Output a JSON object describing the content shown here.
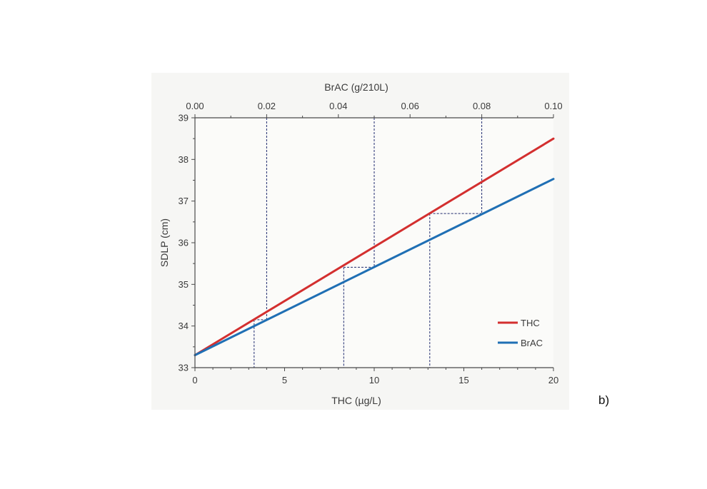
{
  "panel_label": "b)",
  "colors": {
    "thc": "#d32f2f",
    "brac": "#1f6fb4"
  },
  "chart_data": {
    "type": "line",
    "title": "",
    "ylabel": "SDLP (cm)",
    "ylim": [
      33,
      39
    ],
    "yticks": [
      33,
      34,
      35,
      36,
      37,
      38,
      39
    ],
    "x_bottom": {
      "label": "THC (µg/L)",
      "range": [
        0,
        20
      ],
      "ticks": [
        0,
        5,
        10,
        15,
        20
      ],
      "tick_labels": [
        "0",
        "5",
        "10",
        "15",
        "20"
      ]
    },
    "x_top": {
      "label": "BrAC (g/210L)",
      "range": [
        0,
        0.1
      ],
      "ticks": [
        0,
        0.02,
        0.04,
        0.06,
        0.08,
        0.1
      ],
      "tick_labels": [
        "0.00",
        "0.02",
        "0.04",
        "0.06",
        "0.08",
        "0.10"
      ]
    },
    "grid": false,
    "legend": {
      "position": "bottom-right"
    },
    "series": [
      {
        "name": "THC",
        "axis": "bottom",
        "color": "#d32f2f",
        "x": [
          0,
          20
        ],
        "y": [
          33.3,
          38.5
        ]
      },
      {
        "name": "BrAC",
        "axis": "top",
        "color": "#1f6fb4",
        "x": [
          0,
          0.1
        ],
        "y": [
          33.3,
          37.53
        ]
      }
    ],
    "annotations": [
      {
        "brac": 0.02,
        "thc": 3.3,
        "sdlp": 34.15
      },
      {
        "brac": 0.05,
        "thc": 8.3,
        "sdlp": 35.41
      },
      {
        "brac": 0.08,
        "thc": 13.1,
        "sdlp": 36.7
      }
    ]
  }
}
